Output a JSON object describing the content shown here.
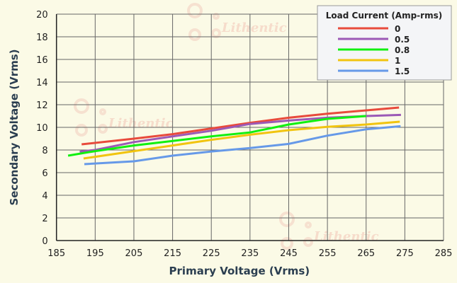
{
  "chart_data": {
    "type": "line",
    "xlabel": "Primary Voltage (Vrms)",
    "ylabel": "Secondary Voltage (Vrms)",
    "xlim": [
      185,
      285
    ],
    "ylim": [
      0,
      20
    ],
    "xticks": [
      185,
      195,
      205,
      215,
      225,
      235,
      245,
      255,
      265,
      275,
      285
    ],
    "yticks": [
      0,
      2,
      4,
      6,
      8,
      10,
      12,
      14,
      16,
      18,
      20
    ],
    "grid": true,
    "legend": {
      "title": "Load Current (Amp-rms)",
      "placement": "top-right"
    },
    "series": [
      {
        "name": "0",
        "color": "#e84a3c",
        "x": [
          191.5,
          205,
          215,
          225,
          235,
          245,
          255,
          265,
          273.5
        ],
        "y": [
          8.5,
          9.0,
          9.4,
          9.9,
          10.4,
          10.85,
          11.2,
          11.5,
          11.75
        ]
      },
      {
        "name": "0.5",
        "color": "#9b59b6",
        "x": [
          191,
          195,
          205,
          215,
          225,
          235,
          245,
          255,
          265,
          274
        ],
        "y": [
          7.85,
          8.0,
          8.7,
          9.2,
          9.7,
          10.3,
          10.6,
          10.85,
          11.0,
          11.1
        ]
      },
      {
        "name": "0.8",
        "color": "#10f010",
        "x": [
          188,
          195,
          205,
          215,
          225,
          235,
          245,
          255,
          265
        ],
        "y": [
          7.5,
          7.9,
          8.4,
          8.8,
          9.2,
          9.55,
          10.25,
          10.75,
          11.0
        ]
      },
      {
        "name": "1",
        "color": "#f1c40f",
        "x": [
          192,
          205,
          215,
          225,
          235,
          245,
          255,
          265,
          273.7
        ],
        "y": [
          7.25,
          7.9,
          8.4,
          8.9,
          9.35,
          9.75,
          10.05,
          10.25,
          10.5
        ]
      },
      {
        "name": "1.5",
        "color": "#6699e8",
        "x": [
          192.2,
          205,
          215,
          225,
          235,
          245,
          255,
          265,
          273.9
        ],
        "y": [
          6.75,
          7.0,
          7.5,
          7.87,
          8.17,
          8.54,
          9.27,
          9.83,
          10.1
        ]
      }
    ]
  },
  "watermark": "Lithentic"
}
